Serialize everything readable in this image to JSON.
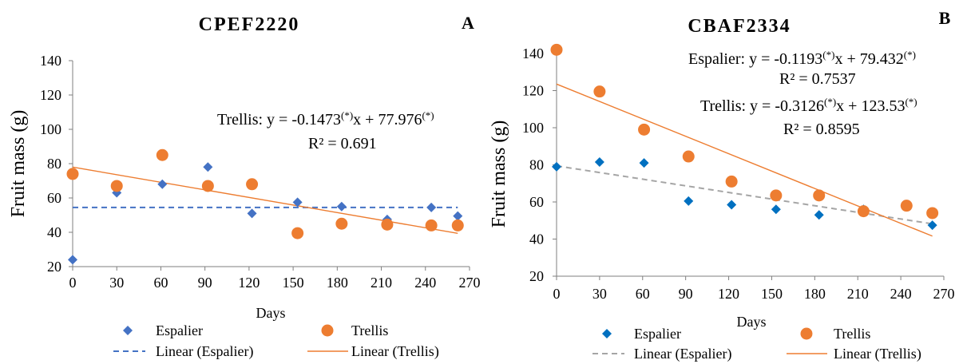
{
  "chart_data": [
    {
      "panel_label": "A",
      "type": "scatter",
      "title": "CPEF2220",
      "xlabel": "Days",
      "ylabel": "Fruit mass (g)",
      "xlim": [
        0,
        270
      ],
      "ylim": [
        20,
        140
      ],
      "xticks": [
        0,
        30,
        60,
        90,
        120,
        150,
        180,
        210,
        240,
        270
      ],
      "yticks": [
        20,
        40,
        60,
        80,
        100,
        120,
        140
      ],
      "grid": false,
      "legend_placement": "bottom",
      "series": [
        {
          "name": "Espalier",
          "marker": "diamond",
          "color": "#4472C4",
          "x": [
            0,
            30,
            61,
            92,
            122,
            153,
            183,
            214,
            244,
            262
          ],
          "y": [
            24,
            63,
            68,
            78,
            51,
            57.5,
            55,
            47.5,
            54.5,
            49.5
          ]
        },
        {
          "name": "Trellis",
          "marker": "circle",
          "color": "#ED7D31",
          "x": [
            0,
            30,
            61,
            92,
            122,
            153,
            183,
            214,
            244,
            262
          ],
          "y": [
            74,
            67,
            85,
            67,
            68,
            39.5,
            45,
            44.5,
            44,
            44
          ]
        }
      ],
      "trendlines": [
        {
          "name": "Linear (Espalier)",
          "style": "dashed",
          "color": "#4472C4",
          "x": [
            0,
            262
          ],
          "y": [
            54.5,
            54.5
          ]
        },
        {
          "name": "Linear (Trellis)",
          "style": "solid",
          "color": "#ED7D31",
          "x": [
            0,
            262
          ],
          "y": [
            77.976,
            39.4
          ]
        }
      ],
      "annotations": [
        {
          "parts": [
            "Trellis:  y = -0.1473",
            "(*)",
            "x + 77.976",
            "(*)"
          ]
        },
        {
          "parts": [
            "R² = 0.691"
          ]
        }
      ]
    },
    {
      "panel_label": "B",
      "type": "scatter",
      "title": "CBAF2334",
      "xlabel": "Days",
      "ylabel": "Fruit mass (g)",
      "xlim": [
        0,
        270
      ],
      "ylim": [
        20,
        140
      ],
      "xticks": [
        0,
        30,
        60,
        90,
        120,
        150,
        180,
        210,
        240,
        270
      ],
      "yticks": [
        20,
        40,
        60,
        80,
        100,
        120,
        140
      ],
      "grid": false,
      "legend_placement": "bottom",
      "series": [
        {
          "name": "Espalier",
          "marker": "diamond",
          "color": "#0070C0",
          "x": [
            0,
            30,
            61,
            92,
            122,
            153,
            183,
            214,
            244,
            262
          ],
          "y": [
            79,
            81.5,
            81,
            60.5,
            58.5,
            56,
            53,
            56,
            58.5,
            47.5
          ]
        },
        {
          "name": "Trellis",
          "marker": "circle",
          "color": "#ED7D31",
          "x": [
            0,
            30,
            61,
            92,
            122,
            153,
            183,
            214,
            244,
            262
          ],
          "y": [
            142,
            119.5,
            99,
            84.5,
            71,
            63.5,
            63.5,
            55,
            58,
            54
          ]
        }
      ],
      "trendlines": [
        {
          "name": "Linear (Espalier)",
          "style": "dashed",
          "color": "#A5A5A5",
          "x": [
            0,
            262
          ],
          "y": [
            79.432,
            48.2
          ]
        },
        {
          "name": "Linear (Trellis)",
          "style": "solid",
          "color": "#ED7D31",
          "x": [
            0,
            262
          ],
          "y": [
            123.53,
            41.6
          ]
        }
      ],
      "annotations": [
        {
          "parts": [
            "Espalier: y = -0.1193",
            "(*)",
            "x + 79.432",
            "(*)"
          ]
        },
        {
          "parts": [
            "R² = 0.7537"
          ]
        },
        {
          "parts": [
            "Trellis:  y = -0.3126",
            "(*)",
            "x + 123.53",
            "(*)"
          ]
        },
        {
          "parts": [
            "R² = 0.8595"
          ]
        }
      ]
    }
  ]
}
